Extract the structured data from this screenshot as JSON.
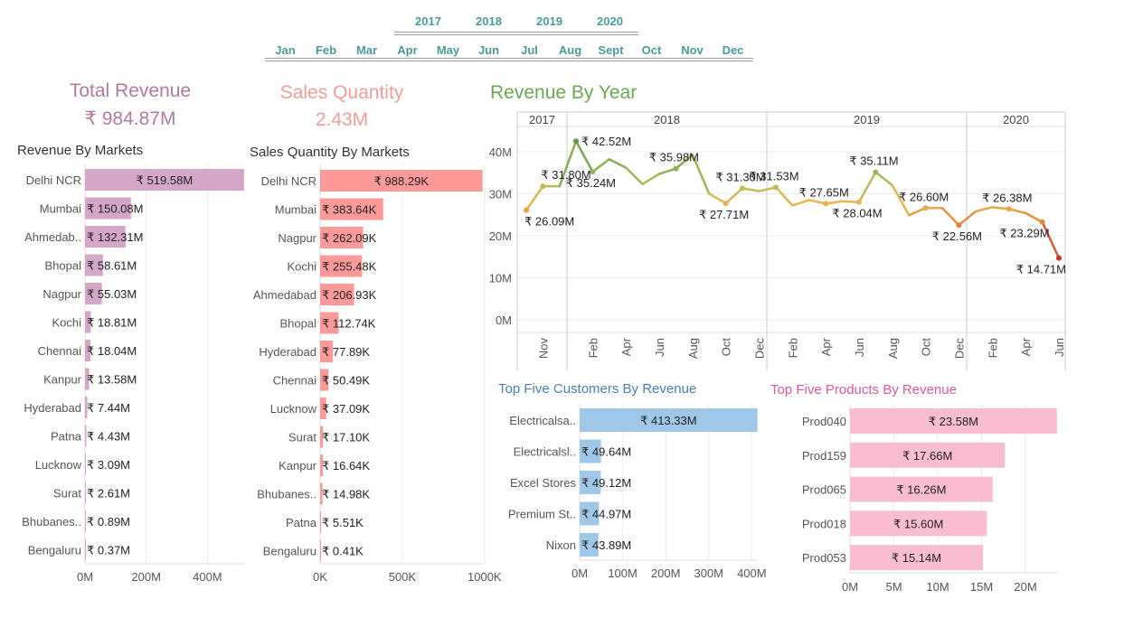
{
  "filters": {
    "years": [
      "2017",
      "2018",
      "2019",
      "2020"
    ],
    "months": [
      "Jan",
      "Feb",
      "Mar",
      "Apr",
      "May",
      "Jun",
      "Jul",
      "Aug",
      "Sept",
      "Oct",
      "Nov",
      "Dec"
    ]
  },
  "kpis": {
    "total_revenue": {
      "title": "Total Revenue",
      "value": "₹ 984.87M",
      "color": "#b07aa1"
    },
    "sales_quantity": {
      "title": "Sales Quantity",
      "value": "2.43M",
      "color": "#f59a9a"
    }
  },
  "colors": {
    "revenue_markets": "#d4a6c8",
    "quantity_markets": "#fc9a9a",
    "customers": "#9fc8e8",
    "products": "#f9bcd0",
    "line_title": "#6aa84f",
    "customers_title": "#4a7fb0",
    "products_title": "#e0589a"
  },
  "chart_data": [
    {
      "type": "bar",
      "title": "Revenue By Markets",
      "categories": [
        "Delhi NCR",
        "Mumbai",
        "Ahmedab..",
        "Bhopal",
        "Nagpur",
        "Kochi",
        "Chennai",
        "Kanpur",
        "Hyderabad",
        "Patna",
        "Lucknow",
        "Surat",
        "Bhubanes..",
        "Bengaluru"
      ],
      "values": [
        519.58,
        150.08,
        132.31,
        58.61,
        55.03,
        18.81,
        18.04,
        13.58,
        7.44,
        4.43,
        3.09,
        2.61,
        0.89,
        0.37
      ],
      "labels": [
        "₹ 519.58M",
        "₹ 150.08M",
        "₹ 132.31M",
        "₹ 58.61M",
        "₹ 55.03M",
        "₹ 18.81M",
        "₹ 18.04M",
        "₹ 13.58M",
        "₹ 7.44M",
        "₹ 4.43M",
        "₹ 3.09M",
        "₹ 2.61M",
        "₹ 0.89M",
        "₹ 0.37M"
      ],
      "xticks": [
        "0M",
        "200M",
        "400M"
      ],
      "xtick_values": [
        0,
        200,
        400
      ],
      "xlim": [
        0,
        520
      ]
    },
    {
      "type": "bar",
      "title": "Sales Quantity By Markets",
      "categories": [
        "Delhi NCR",
        "Mumbai",
        "Nagpur",
        "Kochi",
        "Ahmedabad",
        "Bhopal",
        "Hyderabad",
        "Chennai",
        "Lucknow",
        "Surat",
        "Kanpur",
        "Bhubanes..",
        "Patna",
        "Bengaluru"
      ],
      "values": [
        988.29,
        383.64,
        262.09,
        255.48,
        206.93,
        112.74,
        77.89,
        50.49,
        37.09,
        17.1,
        16.64,
        14.98,
        5.51,
        0.41
      ],
      "labels": [
        "₹ 988.29K",
        "₹ 383.64K",
        "₹ 262.09K",
        "₹ 255.48K",
        "₹ 206.93K",
        "₹ 112.74K",
        "₹ 77.89K",
        "₹ 50.49K",
        "₹ 37.09K",
        "₹ 17.10K",
        "₹ 16.64K",
        "₹ 14.98K",
        "₹ 5.51K",
        "₹ 0.41K"
      ],
      "xticks": [
        "0K",
        "500K",
        "1000K"
      ],
      "xtick_values": [
        0,
        500,
        1000
      ],
      "xlim": [
        0,
        990
      ]
    },
    {
      "type": "line",
      "title": "Revenue By Year",
      "yticks": [
        "0M",
        "10M",
        "20M",
        "30M",
        "40M"
      ],
      "ytick_values": [
        0,
        10,
        20,
        30,
        40
      ],
      "ylim": [
        -3,
        46
      ],
      "panels": [
        {
          "year": "2017",
          "points": [
            {
              "month": "Oct",
              "value": 26.09
            },
            {
              "month": "Nov",
              "value": 31.8
            },
            {
              "month": "Dec",
              "value": 31.8
            }
          ],
          "ticks": [
            {
              "month": "Nov",
              "label": "Nov"
            }
          ],
          "labels": [
            {
              "month": "Oct",
              "text": "₹ 26.09M",
              "pos": "below"
            },
            {
              "month": "Nov",
              "text": "₹ 31.80M",
              "pos": "above"
            }
          ]
        },
        {
          "year": "2018",
          "points": [
            {
              "month": "Jan",
              "value": 42.52
            },
            {
              "month": "Feb",
              "value": 35.24
            },
            {
              "month": "Mar",
              "value": 38.2
            },
            {
              "month": "Apr",
              "value": 36.2
            },
            {
              "month": "May",
              "value": 32.3
            },
            {
              "month": "Jun",
              "value": 34.7
            },
            {
              "month": "Jul",
              "value": 35.98
            },
            {
              "month": "Aug",
              "value": 39.3
            },
            {
              "month": "Sep",
              "value": 30.0
            },
            {
              "month": "Oct",
              "value": 27.71
            },
            {
              "month": "Nov",
              "value": 31.3
            },
            {
              "month": "Dec",
              "value": 30.6
            }
          ],
          "ticks": [
            {
              "month": "Feb",
              "label": "Feb"
            },
            {
              "month": "Apr",
              "label": "Apr"
            },
            {
              "month": "Jun",
              "label": "Jun"
            },
            {
              "month": "Aug",
              "label": "Aug"
            },
            {
              "month": "Oct",
              "label": "Oct"
            },
            {
              "month": "Dec",
              "label": "Dec"
            }
          ],
          "labels": [
            {
              "month": "Jan",
              "text": "₹ 42.52M",
              "pos": "right"
            },
            {
              "month": "Feb",
              "text": "₹ 35.24M",
              "pos": "below"
            },
            {
              "month": "Jul",
              "text": "₹ 35.98M",
              "pos": "above"
            },
            {
              "month": "Oct",
              "text": "₹ 27.71M",
              "pos": "below"
            },
            {
              "month": "Nov",
              "text": "₹ 31.30M",
              "pos": "above"
            }
          ]
        },
        {
          "year": "2019",
          "points": [
            {
              "month": "Jan",
              "value": 31.53
            },
            {
              "month": "Feb",
              "value": 27.2
            },
            {
              "month": "Mar",
              "value": 28.5
            },
            {
              "month": "Apr",
              "value": 27.65
            },
            {
              "month": "May",
              "value": 28.2
            },
            {
              "month": "Jun",
              "value": 28.04
            },
            {
              "month": "Jul",
              "value": 35.11
            },
            {
              "month": "Aug",
              "value": 32.0
            },
            {
              "month": "Sep",
              "value": 24.9
            },
            {
              "month": "Oct",
              "value": 26.6
            },
            {
              "month": "Nov",
              "value": 26.6
            },
            {
              "month": "Dec",
              "value": 22.56
            }
          ],
          "ticks": [
            {
              "month": "Feb",
              "label": "Feb"
            },
            {
              "month": "Apr",
              "label": "Apr"
            },
            {
              "month": "Jun",
              "label": "Jun"
            },
            {
              "month": "Aug",
              "label": "Aug"
            },
            {
              "month": "Oct",
              "label": "Oct"
            },
            {
              "month": "Dec",
              "label": "Dec"
            }
          ],
          "labels": [
            {
              "month": "Jan",
              "text": "₹ 31.53M",
              "pos": "above"
            },
            {
              "month": "Apr",
              "text": "₹ 27.65M",
              "pos": "above"
            },
            {
              "month": "Jun",
              "text": "₹ 28.04M",
              "pos": "below"
            },
            {
              "month": "Jul",
              "text": "₹ 35.11M",
              "pos": "above"
            },
            {
              "month": "Oct",
              "text": "₹ 26.60M",
              "pos": "above"
            },
            {
              "month": "Dec",
              "text": "₹ 22.56M",
              "pos": "below"
            }
          ]
        },
        {
          "year": "2020",
          "points": [
            {
              "month": "Jan",
              "value": 25.8
            },
            {
              "month": "Feb",
              "value": 26.8
            },
            {
              "month": "Mar",
              "value": 26.38
            },
            {
              "month": "Apr",
              "value": 25.4
            },
            {
              "month": "May",
              "value": 23.29
            },
            {
              "month": "Jun",
              "value": 14.71
            }
          ],
          "ticks": [
            {
              "month": "Feb",
              "label": "Feb"
            },
            {
              "month": "Apr",
              "label": "Apr"
            },
            {
              "month": "Jun",
              "label": "Jun"
            }
          ],
          "labels": [
            {
              "month": "Mar",
              "text": "₹ 26.38M",
              "pos": "above"
            },
            {
              "month": "May",
              "text": "₹ 23.29M",
              "pos": "below"
            },
            {
              "month": "Jun",
              "text": "₹ 14.71M",
              "pos": "below"
            }
          ]
        }
      ]
    },
    {
      "type": "bar",
      "title": "Top Five Customers By Revenue",
      "categories": [
        "Electricalsa..",
        "Electricalsl..",
        "Excel Stores",
        "Premium St..",
        "Nixon"
      ],
      "values": [
        413.33,
        49.64,
        49.12,
        44.97,
        43.89
      ],
      "labels": [
        "₹ 413.33M",
        "₹ 49.64M",
        "₹ 49.12M",
        "₹ 44.97M",
        "₹ 43.89M"
      ],
      "xticks": [
        "0M",
        "100M",
        "200M",
        "300M",
        "400M"
      ],
      "xtick_values": [
        0,
        100,
        200,
        300,
        400
      ],
      "xlim": [
        0,
        414
      ]
    },
    {
      "type": "bar",
      "title": "Top Five Products By Revenue",
      "categories": [
        "Prod040",
        "Prod159",
        "Prod065",
        "Prod018",
        "Prod053"
      ],
      "values": [
        23.58,
        17.66,
        16.26,
        15.6,
        15.14
      ],
      "labels": [
        "₹ 23.58M",
        "₹ 17.66M",
        "₹ 16.26M",
        "₹ 15.60M",
        "₹ 15.14M"
      ],
      "xticks": [
        "0M",
        "5M",
        "10M",
        "15M",
        "20M"
      ],
      "xtick_values": [
        0,
        5,
        10,
        15,
        20
      ],
      "xlim": [
        0,
        23.6
      ]
    }
  ]
}
